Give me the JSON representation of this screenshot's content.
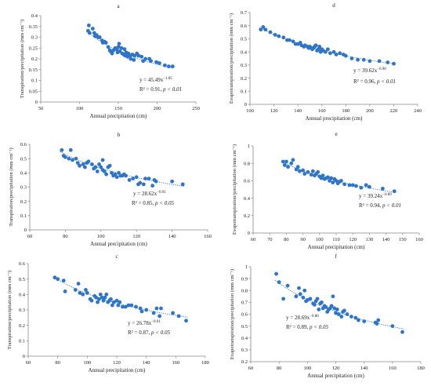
{
  "figure": {
    "title": ""
  },
  "chart_data": [
    {
      "id": "a",
      "panel_label": "a",
      "type": "scatter",
      "xlabel": "Annual precipitation (cm)",
      "ylabel": "Transpiration/precipitation (mm cm⁻¹)",
      "xlim": [
        50,
        250
      ],
      "ylim": [
        0,
        0.4
      ],
      "xticks": [
        "50",
        "100",
        "150",
        "200",
        "250"
      ],
      "yticks": [
        "0",
        "0.05",
        "0.1",
        "0.15",
        "0.2",
        "0.25",
        "0.3",
        "0.35",
        "0.4"
      ],
      "fit": {
        "a": 45.49,
        "b": -1.05,
        "x_range": [
          110,
          222
        ]
      },
      "equation": "y = 45.49x",
      "exponent": "−1.05",
      "r2_text": "R² = 0.91, ",
      "p_text": "p < 0.01",
      "points": [
        [
          111,
          0.33
        ],
        [
          112,
          0.355
        ],
        [
          113,
          0.32
        ],
        [
          117,
          0.34
        ],
        [
          119,
          0.32
        ],
        [
          120,
          0.305
        ],
        [
          122,
          0.31
        ],
        [
          124,
          0.3
        ],
        [
          126,
          0.3
        ],
        [
          129,
          0.285
        ],
        [
          130,
          0.275
        ],
        [
          132,
          0.28
        ],
        [
          134,
          0.275
        ],
        [
          137,
          0.255
        ],
        [
          139,
          0.24
        ],
        [
          140,
          0.235
        ],
        [
          142,
          0.225
        ],
        [
          144,
          0.24
        ],
        [
          146,
          0.25
        ],
        [
          148,
          0.245
        ],
        [
          149,
          0.23
        ],
        [
          150,
          0.255
        ],
        [
          151,
          0.27
        ],
        [
          152,
          0.235
        ],
        [
          154,
          0.25
        ],
        [
          155,
          0.225
        ],
        [
          157,
          0.22
        ],
        [
          158,
          0.245
        ],
        [
          159,
          0.215
        ],
        [
          160,
          0.23
        ],
        [
          162,
          0.21
        ],
        [
          163,
          0.225
        ],
        [
          165,
          0.215
        ],
        [
          166,
          0.2
        ],
        [
          168,
          0.22
        ],
        [
          170,
          0.195
        ],
        [
          171,
          0.215
        ],
        [
          174,
          0.225
        ],
        [
          176,
          0.215
        ],
        [
          180,
          0.21
        ],
        [
          182,
          0.19
        ],
        [
          185,
          0.2
        ],
        [
          190,
          0.2
        ],
        [
          192,
          0.19
        ],
        [
          199,
          0.185
        ],
        [
          203,
          0.18
        ],
        [
          210,
          0.17
        ],
        [
          215,
          0.165
        ],
        [
          220,
          0.165
        ]
      ]
    },
    {
      "id": "b",
      "panel_label": "b",
      "type": "scatter",
      "xlabel": "Annual precipitation (cm)",
      "ylabel": "Transpiration/precipitation (mm cm⁻¹)",
      "xlim": [
        60,
        160
      ],
      "ylim": [
        0,
        0.6
      ],
      "xticks": [
        "60",
        "80",
        "100",
        "120",
        "140",
        "160"
      ],
      "yticks": [
        "0",
        "0.1",
        "0.2",
        "0.3",
        "0.4",
        "0.5",
        "0.6"
      ],
      "fit": {
        "a": 28.62,
        "b": -0.91,
        "x_range": [
          77,
          147
        ]
      },
      "equation": "y = 28.62x",
      "exponent": "−0.91",
      "r2_text": "R² = 0.85, ",
      "p_text": "p < 0.05",
      "points": [
        [
          78,
          0.56
        ],
        [
          79,
          0.52
        ],
        [
          80,
          0.51
        ],
        [
          82,
          0.5
        ],
        [
          83,
          0.56
        ],
        [
          84,
          0.49
        ],
        [
          86,
          0.5
        ],
        [
          87,
          0.47
        ],
        [
          88,
          0.45
        ],
        [
          90,
          0.46
        ],
        [
          91,
          0.44
        ],
        [
          92,
          0.47
        ],
        [
          93,
          0.48
        ],
        [
          95,
          0.46
        ],
        [
          96,
          0.43
        ],
        [
          97,
          0.44
        ],
        [
          98,
          0.41
        ],
        [
          99,
          0.46
        ],
        [
          100,
          0.44
        ],
        [
          101,
          0.42
        ],
        [
          101,
          0.49
        ],
        [
          102,
          0.41
        ],
        [
          103,
          0.39
        ],
        [
          104,
          0.44
        ],
        [
          105,
          0.45
        ],
        [
          106,
          0.4
        ],
        [
          107,
          0.38
        ],
        [
          108,
          0.39
        ],
        [
          109,
          0.37
        ],
        [
          110,
          0.4
        ],
        [
          111,
          0.38
        ],
        [
          112,
          0.38
        ],
        [
          113,
          0.39
        ],
        [
          114,
          0.38
        ],
        [
          116,
          0.35
        ],
        [
          118,
          0.36
        ],
        [
          120,
          0.37
        ],
        [
          121,
          0.32
        ],
        [
          122,
          0.33
        ],
        [
          124,
          0.32
        ],
        [
          125,
          0.36
        ],
        [
          127,
          0.36
        ],
        [
          129,
          0.31
        ],
        [
          130,
          0.35
        ],
        [
          131,
          0.34
        ],
        [
          140,
          0.34
        ],
        [
          146,
          0.32
        ]
      ]
    },
    {
      "id": "c",
      "panel_label": "c",
      "type": "scatter",
      "xlabel": "Annual precipitation (cm)",
      "ylabel": "Transpiration/precipitation (mm cm⁻¹)",
      "xlim": [
        60,
        180
      ],
      "ylim": [
        0,
        0.6
      ],
      "xticks": [
        "60",
        "80",
        "100",
        "120",
        "140",
        "160",
        "180"
      ],
      "yticks": [
        "0",
        "0.1",
        "0.2",
        "0.3",
        "0.4",
        "0.5",
        "0.6"
      ],
      "fit": {
        "a": 26.78,
        "b": -0.91,
        "x_range": [
          77,
          168
        ]
      },
      "equation": "y = 26.78x",
      "exponent": "−0.91",
      "r2_text": "R² = 0.87, ",
      "p_text": "p < 0.05",
      "points": [
        [
          78,
          0.51
        ],
        [
          80,
          0.5
        ],
        [
          84,
          0.49
        ],
        [
          85,
          0.42
        ],
        [
          92,
          0.43
        ],
        [
          94,
          0.47
        ],
        [
          95,
          0.41
        ],
        [
          97,
          0.4
        ],
        [
          99,
          0.43
        ],
        [
          100,
          0.41
        ],
        [
          102,
          0.37
        ],
        [
          103,
          0.36
        ],
        [
          105,
          0.39
        ],
        [
          106,
          0.38
        ],
        [
          107,
          0.35
        ],
        [
          108,
          0.37
        ],
        [
          109,
          0.4
        ],
        [
          110,
          0.38
        ],
        [
          111,
          0.36
        ],
        [
          112,
          0.38
        ],
        [
          113,
          0.4
        ],
        [
          114,
          0.35
        ],
        [
          115,
          0.36
        ],
        [
          116,
          0.37
        ],
        [
          117,
          0.33
        ],
        [
          118,
          0.35
        ],
        [
          120,
          0.36
        ],
        [
          121,
          0.33
        ],
        [
          122,
          0.35
        ],
        [
          124,
          0.32
        ],
        [
          126,
          0.32
        ],
        [
          128,
          0.33
        ],
        [
          130,
          0.33
        ],
        [
          133,
          0.32
        ],
        [
          136,
          0.31
        ],
        [
          137,
          0.29
        ],
        [
          140,
          0.3
        ],
        [
          145,
          0.28
        ],
        [
          147,
          0.31
        ],
        [
          149,
          0.26
        ],
        [
          150,
          0.31
        ],
        [
          158,
          0.28
        ],
        [
          162,
          0.26
        ],
        [
          167,
          0.23
        ]
      ]
    },
    {
      "id": "d",
      "panel_label": "d",
      "type": "scatter",
      "xlabel": "Annual precipitation (cm)",
      "ylabel": "Evapotranspiration/precipitation (mm cm⁻¹)",
      "xlim": [
        100,
        240
      ],
      "ylim": [
        0,
        0.7
      ],
      "xticks": [
        "100",
        "120",
        "140",
        "160",
        "180",
        "200",
        "220",
        "240"
      ],
      "yticks": [
        "0",
        "0.1",
        "0.2",
        "0.3",
        "0.4",
        "0.5",
        "0.6",
        "0.7"
      ],
      "fit": {
        "a": 39.62,
        "b": -0.9,
        "x_range": [
          108,
          222
        ]
      },
      "equation": "y = 39.62x",
      "exponent": "−0.90",
      "r2_text": "R² = 0.96, ",
      "p_text": "p < 0.01",
      "points": [
        [
          109,
          0.57
        ],
        [
          111,
          0.59
        ],
        [
          113,
          0.57
        ],
        [
          117,
          0.55
        ],
        [
          121,
          0.53
        ],
        [
          124,
          0.52
        ],
        [
          128,
          0.51
        ],
        [
          131,
          0.49
        ],
        [
          133,
          0.49
        ],
        [
          136,
          0.48
        ],
        [
          138,
          0.46
        ],
        [
          140,
          0.46
        ],
        [
          142,
          0.47
        ],
        [
          143,
          0.45
        ],
        [
          145,
          0.44
        ],
        [
          146,
          0.45
        ],
        [
          148,
          0.44
        ],
        [
          149,
          0.43
        ],
        [
          150,
          0.44
        ],
        [
          151,
          0.43
        ],
        [
          152,
          0.42
        ],
        [
          153,
          0.43
        ],
        [
          154,
          0.44
        ],
        [
          155,
          0.45
        ],
        [
          156,
          0.41
        ],
        [
          157,
          0.42
        ],
        [
          158,
          0.44
        ],
        [
          159,
          0.4
        ],
        [
          160,
          0.42
        ],
        [
          161,
          0.41
        ],
        [
          163,
          0.4
        ],
        [
          165,
          0.42
        ],
        [
          167,
          0.39
        ],
        [
          170,
          0.4
        ],
        [
          172,
          0.38
        ],
        [
          175,
          0.39
        ],
        [
          178,
          0.38
        ],
        [
          180,
          0.37
        ],
        [
          185,
          0.35
        ],
        [
          190,
          0.34
        ],
        [
          195,
          0.34
        ],
        [
          200,
          0.33
        ],
        [
          208,
          0.33
        ],
        [
          215,
          0.32
        ],
        [
          220,
          0.31
        ]
      ]
    },
    {
      "id": "e",
      "panel_label": "e",
      "type": "scatter",
      "xlabel": "Annual precipitation (cm)",
      "ylabel": "Evapotranspiration/precipitation (mm cm⁻¹)",
      "xlim": [
        60,
        160
      ],
      "ylim": [
        0,
        1
      ],
      "xticks": [
        "60",
        "70",
        "80",
        "90",
        "100",
        "110",
        "120",
        "130",
        "140",
        "150",
        "160"
      ],
      "yticks": [
        "0",
        "0.2",
        "0.4",
        "0.6",
        "0.8",
        "1"
      ],
      "fit": {
        "a": 39.24,
        "b": -0.89,
        "x_range": [
          77,
          146
        ]
      },
      "equation": "y = 39.24x",
      "exponent": "−0.89",
      "r2_text": "R² = 0.94, ",
      "p_text": "p < 0.01",
      "points": [
        [
          78,
          0.82
        ],
        [
          79,
          0.78
        ],
        [
          80,
          0.82
        ],
        [
          81,
          0.76
        ],
        [
          83,
          0.8
        ],
        [
          84,
          0.84
        ],
        [
          86,
          0.73
        ],
        [
          87,
          0.76
        ],
        [
          88,
          0.71
        ],
        [
          90,
          0.72
        ],
        [
          91,
          0.68
        ],
        [
          93,
          0.7
        ],
        [
          95,
          0.67
        ],
        [
          96,
          0.71
        ],
        [
          97,
          0.66
        ],
        [
          98,
          0.68
        ],
        [
          99,
          0.7
        ],
        [
          100,
          0.65
        ],
        [
          101,
          0.63
        ],
        [
          102,
          0.66
        ],
        [
          103,
          0.62
        ],
        [
          104,
          0.63
        ],
        [
          105,
          0.64
        ],
        [
          106,
          0.6
        ],
        [
          107,
          0.63
        ],
        [
          108,
          0.58
        ],
        [
          109,
          0.62
        ],
        [
          110,
          0.6
        ],
        [
          111,
          0.57
        ],
        [
          112,
          0.59
        ],
        [
          113,
          0.6
        ],
        [
          115,
          0.56
        ],
        [
          118,
          0.55
        ],
        [
          120,
          0.55
        ],
        [
          122,
          0.54
        ],
        [
          125,
          0.52
        ],
        [
          128,
          0.55
        ],
        [
          130,
          0.53
        ],
        [
          138,
          0.51
        ],
        [
          145,
          0.48
        ]
      ]
    },
    {
      "id": "f",
      "panel_label": "f",
      "type": "scatter",
      "xlabel": "Annual precipitation (cm)",
      "ylabel": "Evapotranspiration/precipitation (mm cm⁻¹)",
      "xlim": [
        60,
        180
      ],
      "ylim": [
        0.2,
        1
      ],
      "xticks": [
        "60",
        "80",
        "100",
        "120",
        "140",
        "160",
        "180"
      ],
      "yticks": [
        "0.2",
        "0.3",
        "0.4",
        "0.5",
        "0.6",
        "0.7",
        "0.8",
        "0.9",
        "1"
      ],
      "fit": {
        "a": 28.69,
        "b": -0.8,
        "x_range": [
          77,
          168
        ]
      },
      "equation": "y = 28.69x",
      "exponent": "−0.80",
      "r2_text": "R² = 0.89, ",
      "p_text": "p < 0.05",
      "points": [
        [
          78,
          0.94
        ],
        [
          80,
          0.87
        ],
        [
          83,
          0.73
        ],
        [
          86,
          0.84
        ],
        [
          92,
          0.75
        ],
        [
          94,
          0.82
        ],
        [
          95,
          0.77
        ],
        [
          97,
          0.74
        ],
        [
          98,
          0.8
        ],
        [
          99,
          0.71
        ],
        [
          100,
          0.72
        ],
        [
          102,
          0.73
        ],
        [
          104,
          0.69
        ],
        [
          105,
          0.68
        ],
        [
          106,
          0.71
        ],
        [
          107,
          0.73
        ],
        [
          108,
          0.64
        ],
        [
          109,
          0.69
        ],
        [
          110,
          0.7
        ],
        [
          111,
          0.65
        ],
        [
          112,
          0.67
        ],
        [
          113,
          0.66
        ],
        [
          114,
          0.62
        ],
        [
          115,
          0.64
        ],
        [
          116,
          0.65
        ],
        [
          117,
          0.67
        ],
        [
          118,
          0.75
        ],
        [
          119,
          0.65
        ],
        [
          120,
          0.61
        ],
        [
          121,
          0.64
        ],
        [
          122,
          0.6
        ],
        [
          124,
          0.58
        ],
        [
          125,
          0.62
        ],
        [
          126,
          0.63
        ],
        [
          128,
          0.6
        ],
        [
          131,
          0.58
        ],
        [
          134,
          0.57
        ],
        [
          136,
          0.55
        ],
        [
          140,
          0.54
        ],
        [
          148,
          0.53
        ],
        [
          149,
          0.52
        ],
        [
          150,
          0.55
        ],
        [
          160,
          0.5
        ],
        [
          167,
          0.45
        ]
      ]
    }
  ],
  "style": {
    "marker_color": "#2E75C9",
    "trend_color": "#2E75C9",
    "axis_color": "#888888"
  }
}
